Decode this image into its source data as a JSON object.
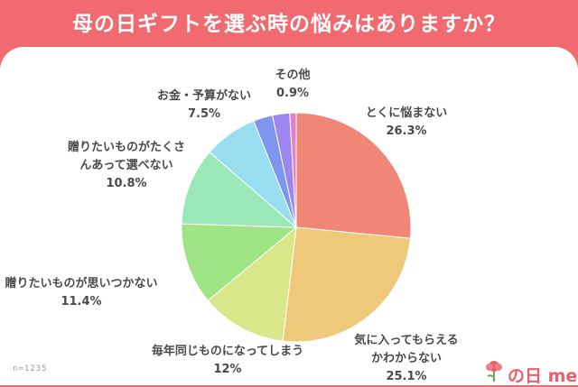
{
  "header": {
    "title": "母の日ギフトを選ぶ時の悩みはありますか？"
  },
  "footnote": "n=1235",
  "logo": {
    "text": "の日 me"
  },
  "colors": {
    "background": "#f06a6f",
    "slices": [
      "#ef8676",
      "#efc97a",
      "#d8e78a",
      "#9fe586",
      "#9ae8b8",
      "#99def0",
      "#7f96ef",
      "#9e86ef",
      "#e680c9"
    ]
  },
  "chart_data": {
    "type": "pie",
    "title": "母の日ギフトを選ぶ時の悩みはありますか？",
    "n": "n=1235",
    "slices": [
      {
        "label_lines": [
          "とくに悩まない"
        ],
        "value_label": "26.3%",
        "value": 26.3
      },
      {
        "label_lines": [
          "気に入ってもらえる",
          "かわからない"
        ],
        "value_label": "25.1%",
        "value": 25.1
      },
      {
        "label_lines": [
          "毎年同じものになってしまう"
        ],
        "value_label": "12%",
        "value": 12
      },
      {
        "label_lines": [
          "贈りたいものが思いつかない"
        ],
        "value_label": "11.4%",
        "value": 11.4
      },
      {
        "label_lines": [
          "贈りたいものがたくさ",
          "んあって選べない"
        ],
        "value_label": "10.8%",
        "value": 10.8
      },
      {
        "label_lines": [
          "お金・予算がない"
        ],
        "value_label": "7.5%",
        "value": 7.5
      },
      {
        "label_lines": [],
        "value_label": "",
        "value": 2.7
      },
      {
        "label_lines": [],
        "value_label": "",
        "value": 2.4
      },
      {
        "label_lines": [
          "その他"
        ],
        "value_label": "0.9%",
        "value": 0.9
      }
    ]
  }
}
